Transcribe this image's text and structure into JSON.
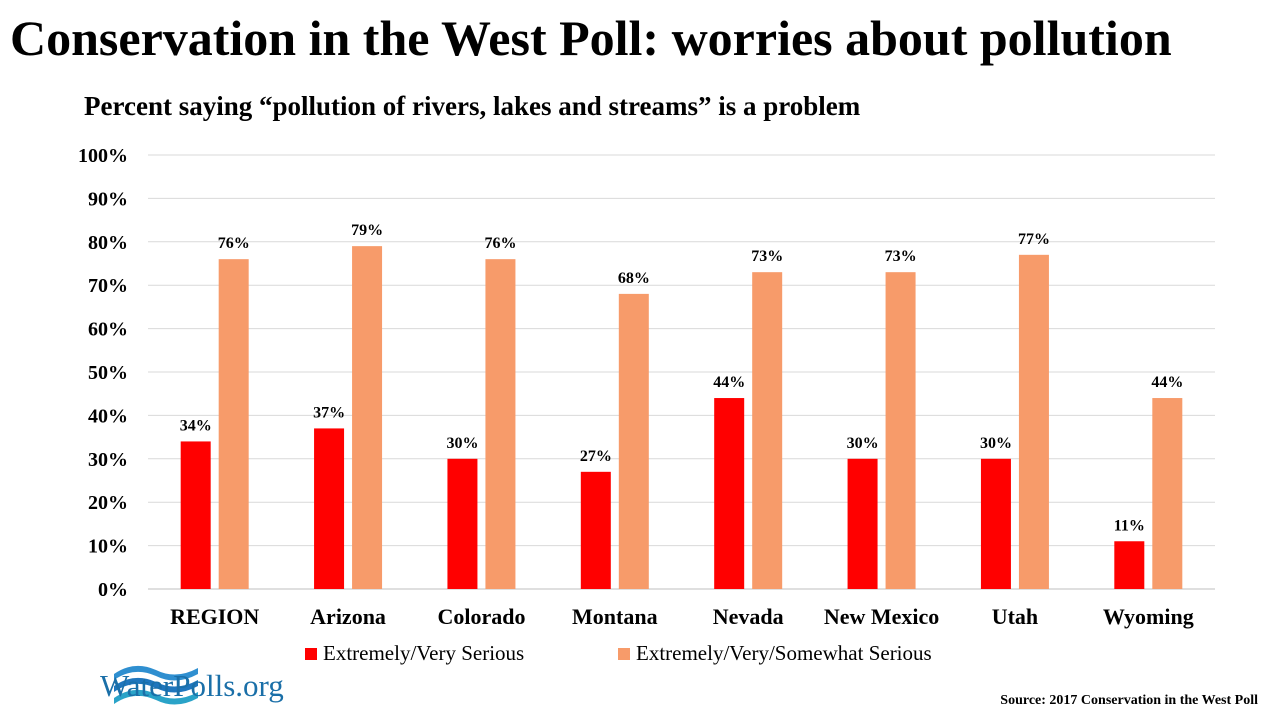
{
  "header": {
    "title": "Conservation in the West Poll: worries about pollution",
    "subtitle": "Percent saying “pollution of rivers, lakes and streams” is a problem"
  },
  "chart_data": {
    "type": "bar",
    "categories": [
      "REGION",
      "Arizona",
      "Colorado",
      "Montana",
      "Nevada",
      "New Mexico",
      "Utah",
      "Wyoming"
    ],
    "series": [
      {
        "name": "Extremely/Very Serious",
        "values": [
          34,
          37,
          30,
          27,
          44,
          30,
          30,
          11
        ],
        "labels": [
          "34%",
          "37%",
          "30%",
          "27%",
          "44%",
          "30%",
          "30%",
          "11%"
        ],
        "color": "#ff0000"
      },
      {
        "name": "Extremely/Very/Somewhat Serious",
        "values": [
          76,
          79,
          76,
          68,
          73,
          73,
          77,
          44
        ],
        "labels": [
          "76%",
          "79%",
          "76%",
          "68%",
          "73%",
          "73%",
          "77%",
          "44%"
        ],
        "color": "#f79b6a"
      }
    ],
    "ylim": [
      0,
      100
    ],
    "yticks": [
      "0%",
      "10%",
      "20%",
      "30%",
      "40%",
      "50%",
      "60%",
      "70%",
      "80%",
      "90%",
      "100%"
    ],
    "grid": true,
    "legend_position": "bottom-center"
  },
  "logo": {
    "text": "WaterPolls.org",
    "color": "#1a6fa8"
  },
  "source": {
    "text": "Source: 2017 Conservation in the West Poll"
  }
}
